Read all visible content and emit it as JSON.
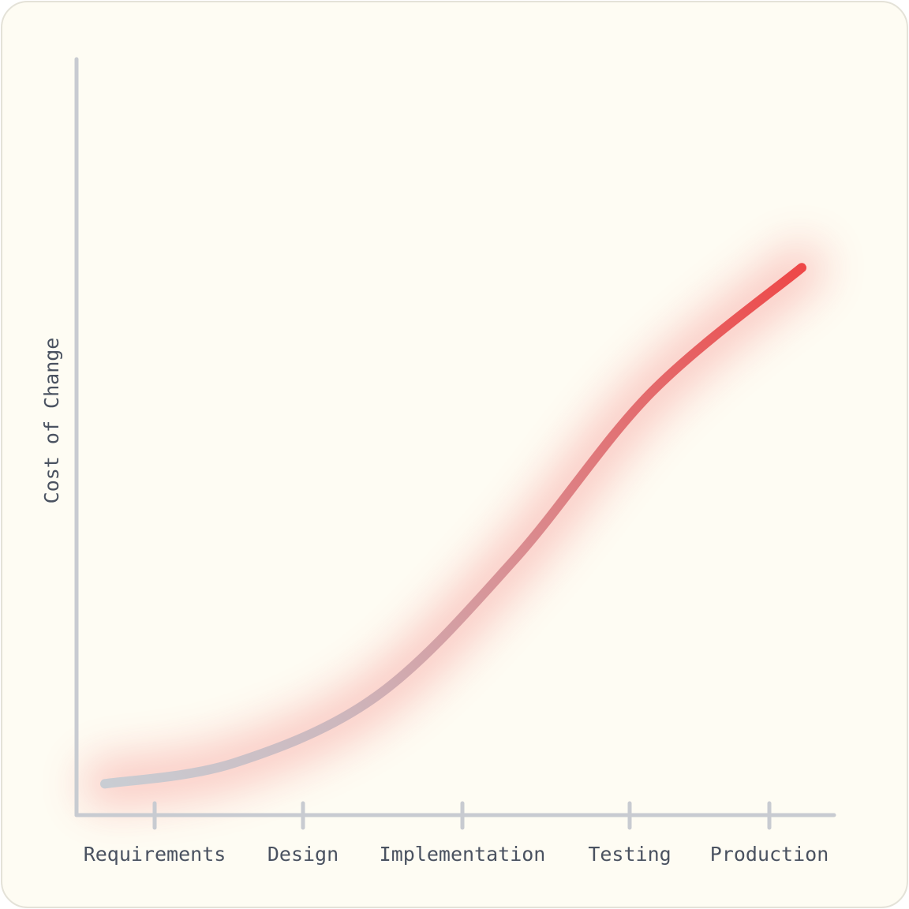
{
  "chart_data": {
    "type": "line",
    "title": "",
    "xlabel": "",
    "ylabel": "Cost of Change",
    "categories": [
      "Requirements",
      "Design",
      "Implementation",
      "Testing",
      "Production"
    ],
    "series": [
      {
        "x": [
          0,
          0.18,
          0.38,
          0.57,
          0.76,
          0.97
        ],
        "y": [
          1,
          5,
          18,
          44,
          76,
          100
        ]
      }
    ],
    "xlim": [
      -0.5,
      4.4
    ],
    "ylim": [
      -5,
      140
    ],
    "grid": false,
    "legend": "none",
    "colors": {
      "axis": "#c8cbd1",
      "curve_start": "#c9cdd3",
      "curve_end": "#ef4444",
      "glow": "#ef4444",
      "background": "#fefcf3",
      "border": "#e4e2d8",
      "text": "#4a5260"
    }
  }
}
